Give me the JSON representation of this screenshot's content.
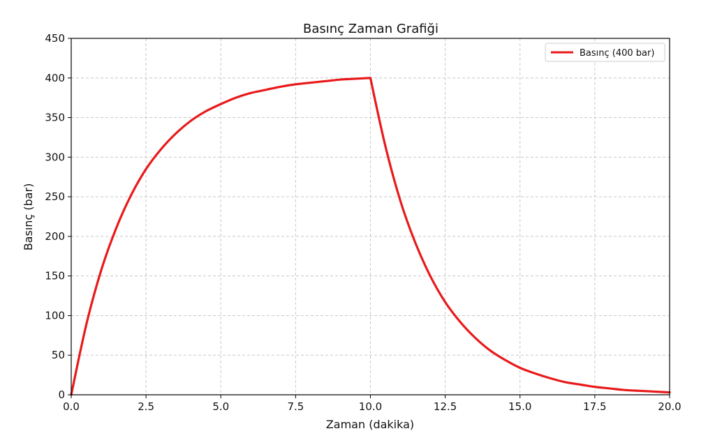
{
  "chart_data": {
    "type": "line",
    "title": "Basınç Zaman Grafiği",
    "xlabel": "Zaman (dakika)",
    "ylabel": "Basınç (bar)",
    "xlim": [
      0,
      20
    ],
    "ylim": [
      0,
      450
    ],
    "xticks": [
      0,
      2.5,
      5,
      7.5,
      10,
      12.5,
      15,
      17.5,
      20
    ],
    "xtick_labels": [
      "0.0",
      "2.5",
      "5.0",
      "7.5",
      "10.0",
      "12.5",
      "15.0",
      "17.5",
      "20.0"
    ],
    "yticks": [
      0,
      50,
      100,
      150,
      200,
      250,
      300,
      350,
      400,
      450
    ],
    "ytick_labels": [
      "0",
      "50",
      "100",
      "150",
      "200",
      "250",
      "300",
      "350",
      "400",
      "450"
    ],
    "grid": true,
    "legend_position": "top-right",
    "series": [
      {
        "name": "Basınç (400 bar)",
        "color": "#e8191a",
        "x": [
          0,
          0.5,
          1,
          1.5,
          2,
          2.5,
          3,
          3.5,
          4,
          4.5,
          5,
          5.5,
          6,
          6.5,
          7,
          7.5,
          8,
          8.5,
          9,
          9.5,
          10,
          10.5,
          11,
          11.5,
          12,
          12.5,
          13,
          13.5,
          14,
          14.5,
          15,
          15.5,
          16,
          16.5,
          17,
          17.5,
          18,
          18.5,
          19,
          19.5,
          20
        ],
        "y": [
          0,
          88,
          157,
          210,
          252,
          285,
          310,
          330,
          346,
          358,
          367,
          375,
          381,
          385,
          389,
          392,
          394,
          396,
          398,
          399,
          400,
          314,
          245,
          192,
          150,
          117,
          92,
          72,
          56,
          44,
          34,
          27,
          21,
          16,
          13,
          10,
          8,
          6,
          5,
          4,
          3
        ]
      }
    ]
  }
}
